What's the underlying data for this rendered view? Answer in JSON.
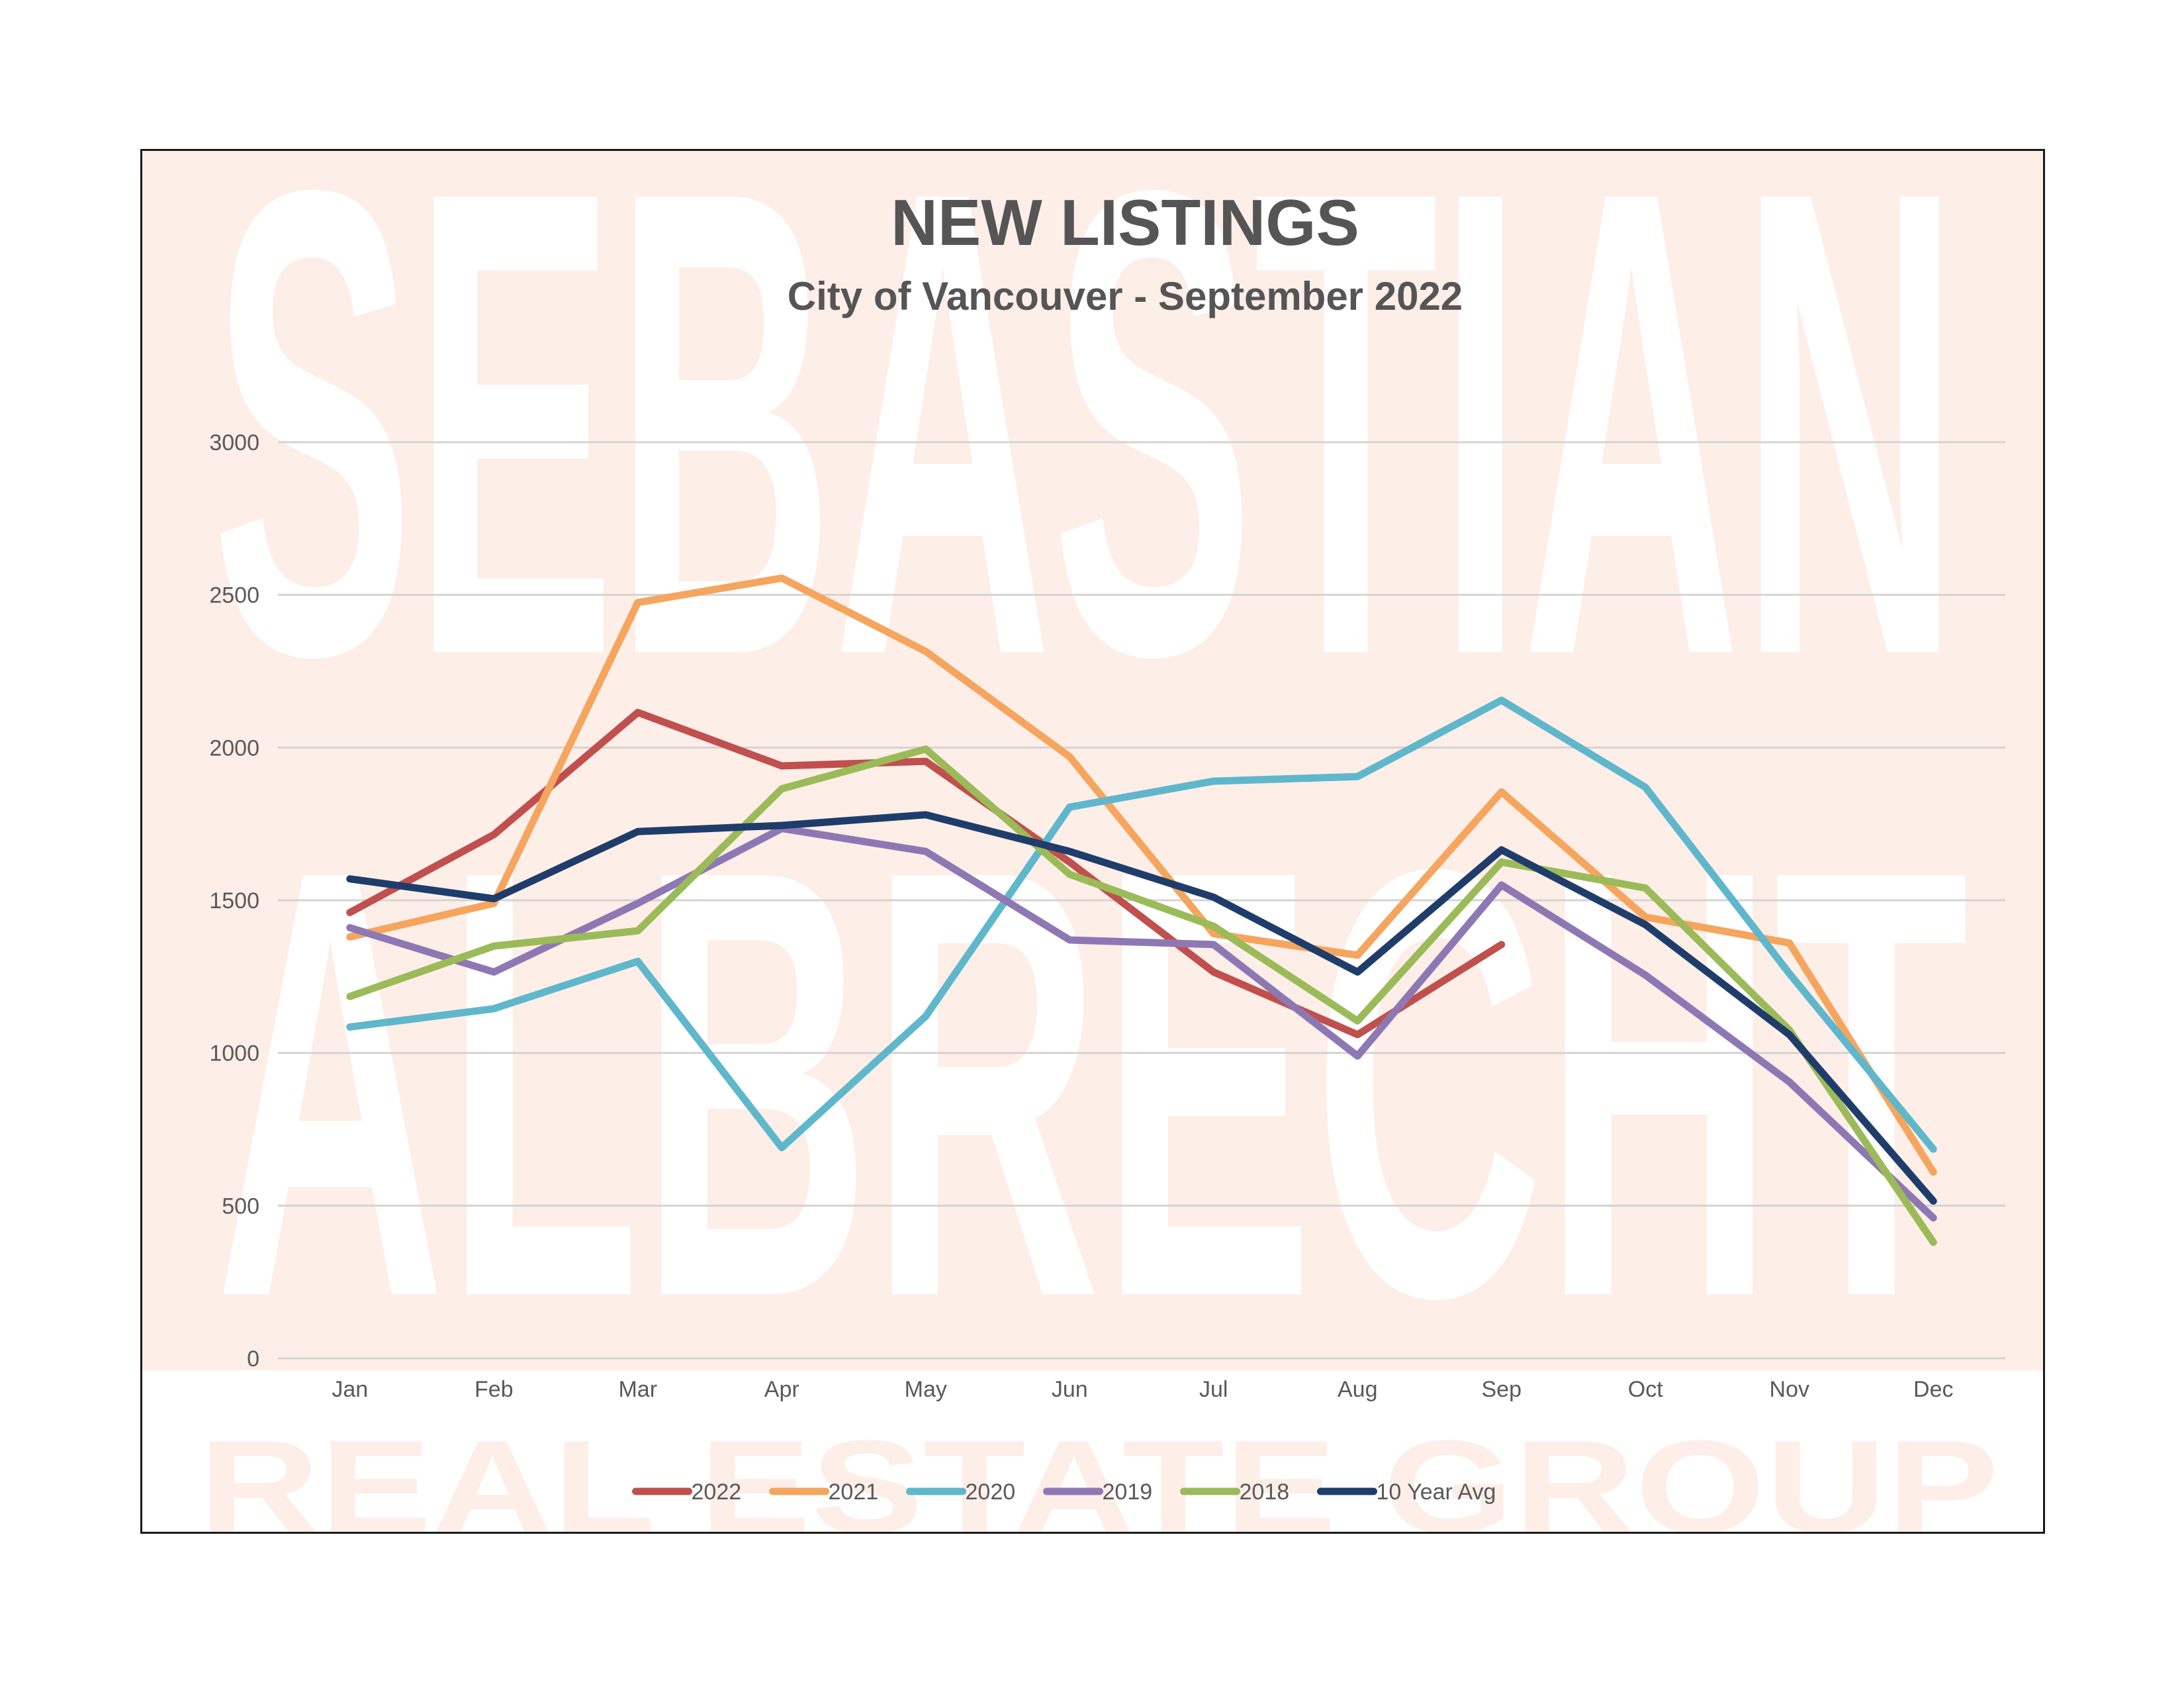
{
  "watermark": {
    "line1": "SEBASTIAN",
    "line2": "ALBRECHT",
    "line3": "REAL ESTATE GROUP",
    "color": "#f9ddd3"
  },
  "chart_data": {
    "type": "line",
    "title": "NEW LISTINGS",
    "subtitle": "City of Vancouver - September 2022",
    "xlabel": "",
    "ylabel": "",
    "categories": [
      "Jan",
      "Feb",
      "Mar",
      "Apr",
      "May",
      "Jun",
      "Jul",
      "Aug",
      "Sep",
      "Oct",
      "Nov",
      "Dec"
    ],
    "ylim": [
      0,
      3000
    ],
    "yticks": [
      "0",
      "500",
      "1000",
      "1500",
      "2000",
      "2500",
      "3000"
    ],
    "grid": true,
    "legend_position": "bottom",
    "series": [
      {
        "name": "2022",
        "color": "#c0504d",
        "values": [
          1460,
          1715,
          2115,
          1940,
          1955,
          1625,
          1265,
          1060,
          1355,
          null,
          null,
          null
        ]
      },
      {
        "name": "2021",
        "color": "#f5a55e",
        "values": [
          1380,
          1490,
          2475,
          2555,
          2315,
          1970,
          1390,
          1320,
          1855,
          1445,
          1360,
          610
        ]
      },
      {
        "name": "2020",
        "color": "#5fb7cc",
        "values": [
          1085,
          1145,
          1300,
          690,
          1120,
          1805,
          1890,
          1905,
          2155,
          1870,
          1260,
          685
        ]
      },
      {
        "name": "2019",
        "color": "#8e78b3",
        "values": [
          1410,
          1265,
          1490,
          1735,
          1660,
          1370,
          1355,
          990,
          1550,
          1255,
          905,
          460
        ]
      },
      {
        "name": "2018",
        "color": "#9bbb59",
        "values": [
          1185,
          1350,
          1400,
          1865,
          1995,
          1585,
          1415,
          1105,
          1625,
          1540,
          1075,
          380
        ]
      },
      {
        "name": "10 Year Avg",
        "color": "#1f3d6b",
        "values": [
          1570,
          1505,
          1725,
          1745,
          1780,
          1660,
          1510,
          1265,
          1665,
          1420,
          1060,
          515
        ]
      }
    ]
  }
}
